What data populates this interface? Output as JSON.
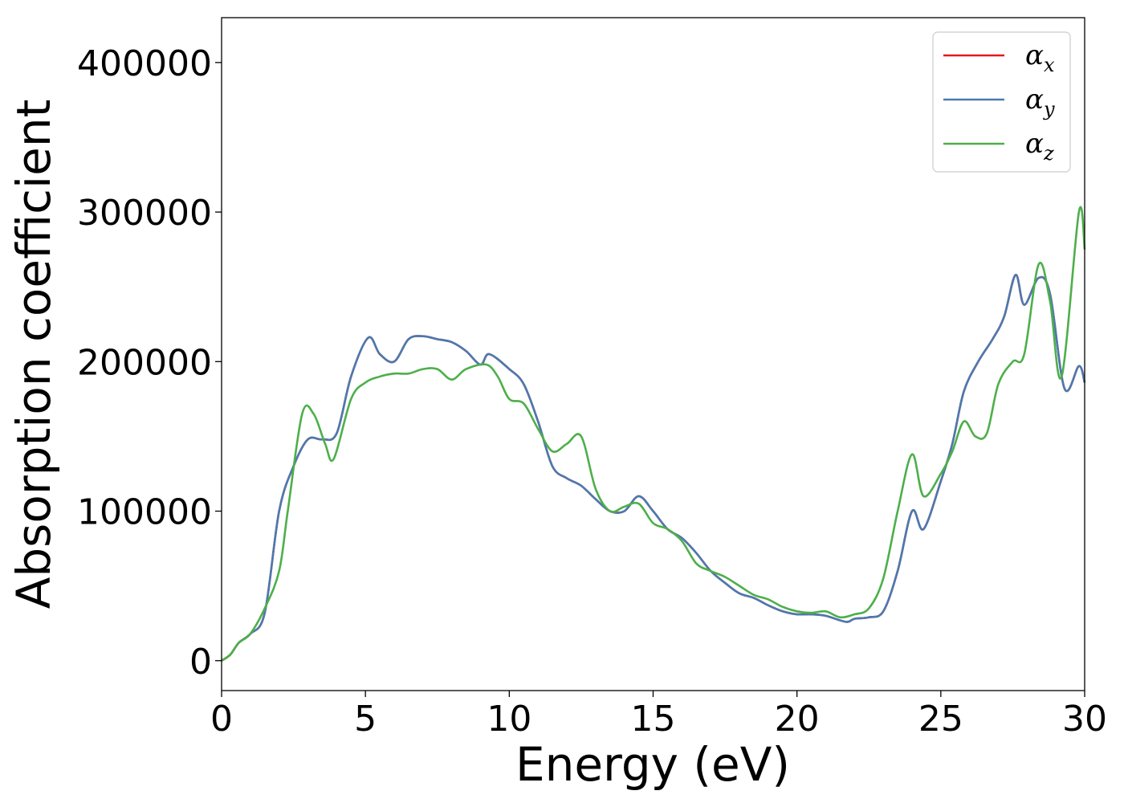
{
  "chart_data": {
    "type": "line",
    "xlabel": "Energy (eV)",
    "ylabel": "Absorption coefficient",
    "xlim": [
      0,
      30
    ],
    "ylim": [
      -20000,
      430000
    ],
    "xticks": [
      0,
      5,
      10,
      15,
      20,
      25,
      30
    ],
    "xtick_labels": [
      "0",
      "5",
      "10",
      "15",
      "20",
      "25",
      "30"
    ],
    "yticks": [
      0,
      100000,
      200000,
      300000,
      400000
    ],
    "ytick_labels": [
      "0",
      "100000",
      "200000",
      "300000",
      "400000"
    ],
    "grid": false,
    "legend_position": "top-right",
    "series": [
      {
        "name": "α",
        "subscript": "x",
        "color": "#e41a1c",
        "x": [
          0,
          0.3,
          0.6,
          1.0,
          1.5,
          2.0,
          2.5,
          3.0,
          3.5,
          4.0,
          4.5,
          5.1,
          5.5,
          6.0,
          6.5,
          7.0,
          7.5,
          8.0,
          8.5,
          9.0,
          9.3,
          10.0,
          10.5,
          11.0,
          11.5,
          12.0,
          12.5,
          13.0,
          13.5,
          14.0,
          14.5,
          15.0,
          15.5,
          16.0,
          16.5,
          17.0,
          17.5,
          18.0,
          18.5,
          19.0,
          19.5,
          20.0,
          20.5,
          21.0,
          21.7,
          22.0,
          22.5,
          23.0,
          23.5,
          24.0,
          24.4,
          25.0,
          25.4,
          25.8,
          26.3,
          26.8,
          27.2,
          27.6,
          27.9,
          28.4,
          28.8,
          29.3,
          29.8,
          30.0
        ],
        "y": [
          0,
          4000,
          12000,
          18000,
          32000,
          100000,
          130000,
          148000,
          148000,
          152000,
          190000,
          216000,
          205000,
          200000,
          215000,
          217000,
          215000,
          213000,
          207000,
          198000,
          205000,
          195000,
          185000,
          160000,
          130000,
          122000,
          117000,
          108000,
          100000,
          100000,
          110000,
          100000,
          88000,
          82000,
          72000,
          60000,
          52000,
          45000,
          42000,
          37000,
          33000,
          31000,
          31000,
          30000,
          26000,
          28000,
          29000,
          33000,
          60000,
          100000,
          88000,
          120000,
          145000,
          180000,
          200000,
          215000,
          230000,
          258000,
          238000,
          256000,
          245000,
          182000,
          197000,
          186000
        ]
      },
      {
        "name": "α",
        "subscript": "y",
        "color": "#4a7ab0",
        "x": [
          0,
          0.3,
          0.6,
          1.0,
          1.5,
          2.0,
          2.5,
          3.0,
          3.5,
          4.0,
          4.5,
          5.1,
          5.5,
          6.0,
          6.5,
          7.0,
          7.5,
          8.0,
          8.5,
          9.0,
          9.3,
          10.0,
          10.5,
          11.0,
          11.5,
          12.0,
          12.5,
          13.0,
          13.5,
          14.0,
          14.5,
          15.0,
          15.5,
          16.0,
          16.5,
          17.0,
          17.5,
          18.0,
          18.5,
          19.0,
          19.5,
          20.0,
          20.5,
          21.0,
          21.7,
          22.0,
          22.5,
          23.0,
          23.5,
          24.0,
          24.4,
          25.0,
          25.4,
          25.8,
          26.3,
          26.8,
          27.2,
          27.6,
          27.9,
          28.4,
          28.8,
          29.3,
          29.8,
          30.0
        ],
        "y": [
          0,
          4000,
          12000,
          18000,
          32000,
          100000,
          130000,
          148000,
          148000,
          152000,
          190000,
          216000,
          205000,
          200000,
          215000,
          217000,
          215000,
          213000,
          207000,
          198000,
          205000,
          195000,
          185000,
          160000,
          130000,
          122000,
          117000,
          108000,
          100000,
          100000,
          110000,
          100000,
          88000,
          82000,
          72000,
          60000,
          52000,
          45000,
          42000,
          37000,
          33000,
          31000,
          31000,
          30000,
          26000,
          28000,
          29000,
          33000,
          60000,
          100000,
          88000,
          120000,
          145000,
          180000,
          200000,
          215000,
          230000,
          258000,
          238000,
          256000,
          245000,
          182000,
          197000,
          186000
        ]
      },
      {
        "name": "α",
        "subscript": "z",
        "color": "#4daf4a",
        "x": [
          0,
          0.3,
          0.6,
          1.0,
          1.5,
          2.0,
          2.3,
          2.8,
          3.2,
          3.6,
          3.9,
          4.5,
          5.0,
          5.5,
          6.0,
          6.5,
          7.0,
          7.5,
          8.0,
          8.5,
          9.2,
          9.6,
          10.0,
          10.5,
          11.0,
          11.5,
          12.0,
          12.5,
          13.0,
          13.5,
          14.0,
          14.5,
          15.0,
          15.5,
          16.0,
          16.5,
          17.0,
          17.5,
          18.0,
          18.5,
          19.0,
          19.5,
          20.0,
          20.5,
          21.0,
          21.5,
          22.0,
          22.5,
          23.0,
          23.5,
          24.0,
          24.4,
          25.0,
          25.4,
          25.8,
          26.2,
          26.6,
          27.0,
          27.5,
          27.9,
          28.4,
          28.8,
          29.2,
          29.8,
          30.0
        ],
        "y": [
          0,
          4000,
          12000,
          18000,
          35000,
          60000,
          100000,
          165000,
          165000,
          145000,
          135000,
          175000,
          186000,
          190000,
          192000,
          192000,
          195000,
          195000,
          188000,
          195000,
          198000,
          190000,
          175000,
          172000,
          155000,
          140000,
          145000,
          150000,
          115000,
          100000,
          103000,
          105000,
          92000,
          88000,
          80000,
          65000,
          60000,
          56000,
          50000,
          44000,
          41000,
          36000,
          33000,
          32000,
          33000,
          29000,
          31000,
          35000,
          55000,
          100000,
          138000,
          110000,
          125000,
          140000,
          160000,
          150000,
          152000,
          185000,
          200000,
          205000,
          265000,
          240000,
          190000,
          300000,
          275000
        ]
      }
    ]
  }
}
